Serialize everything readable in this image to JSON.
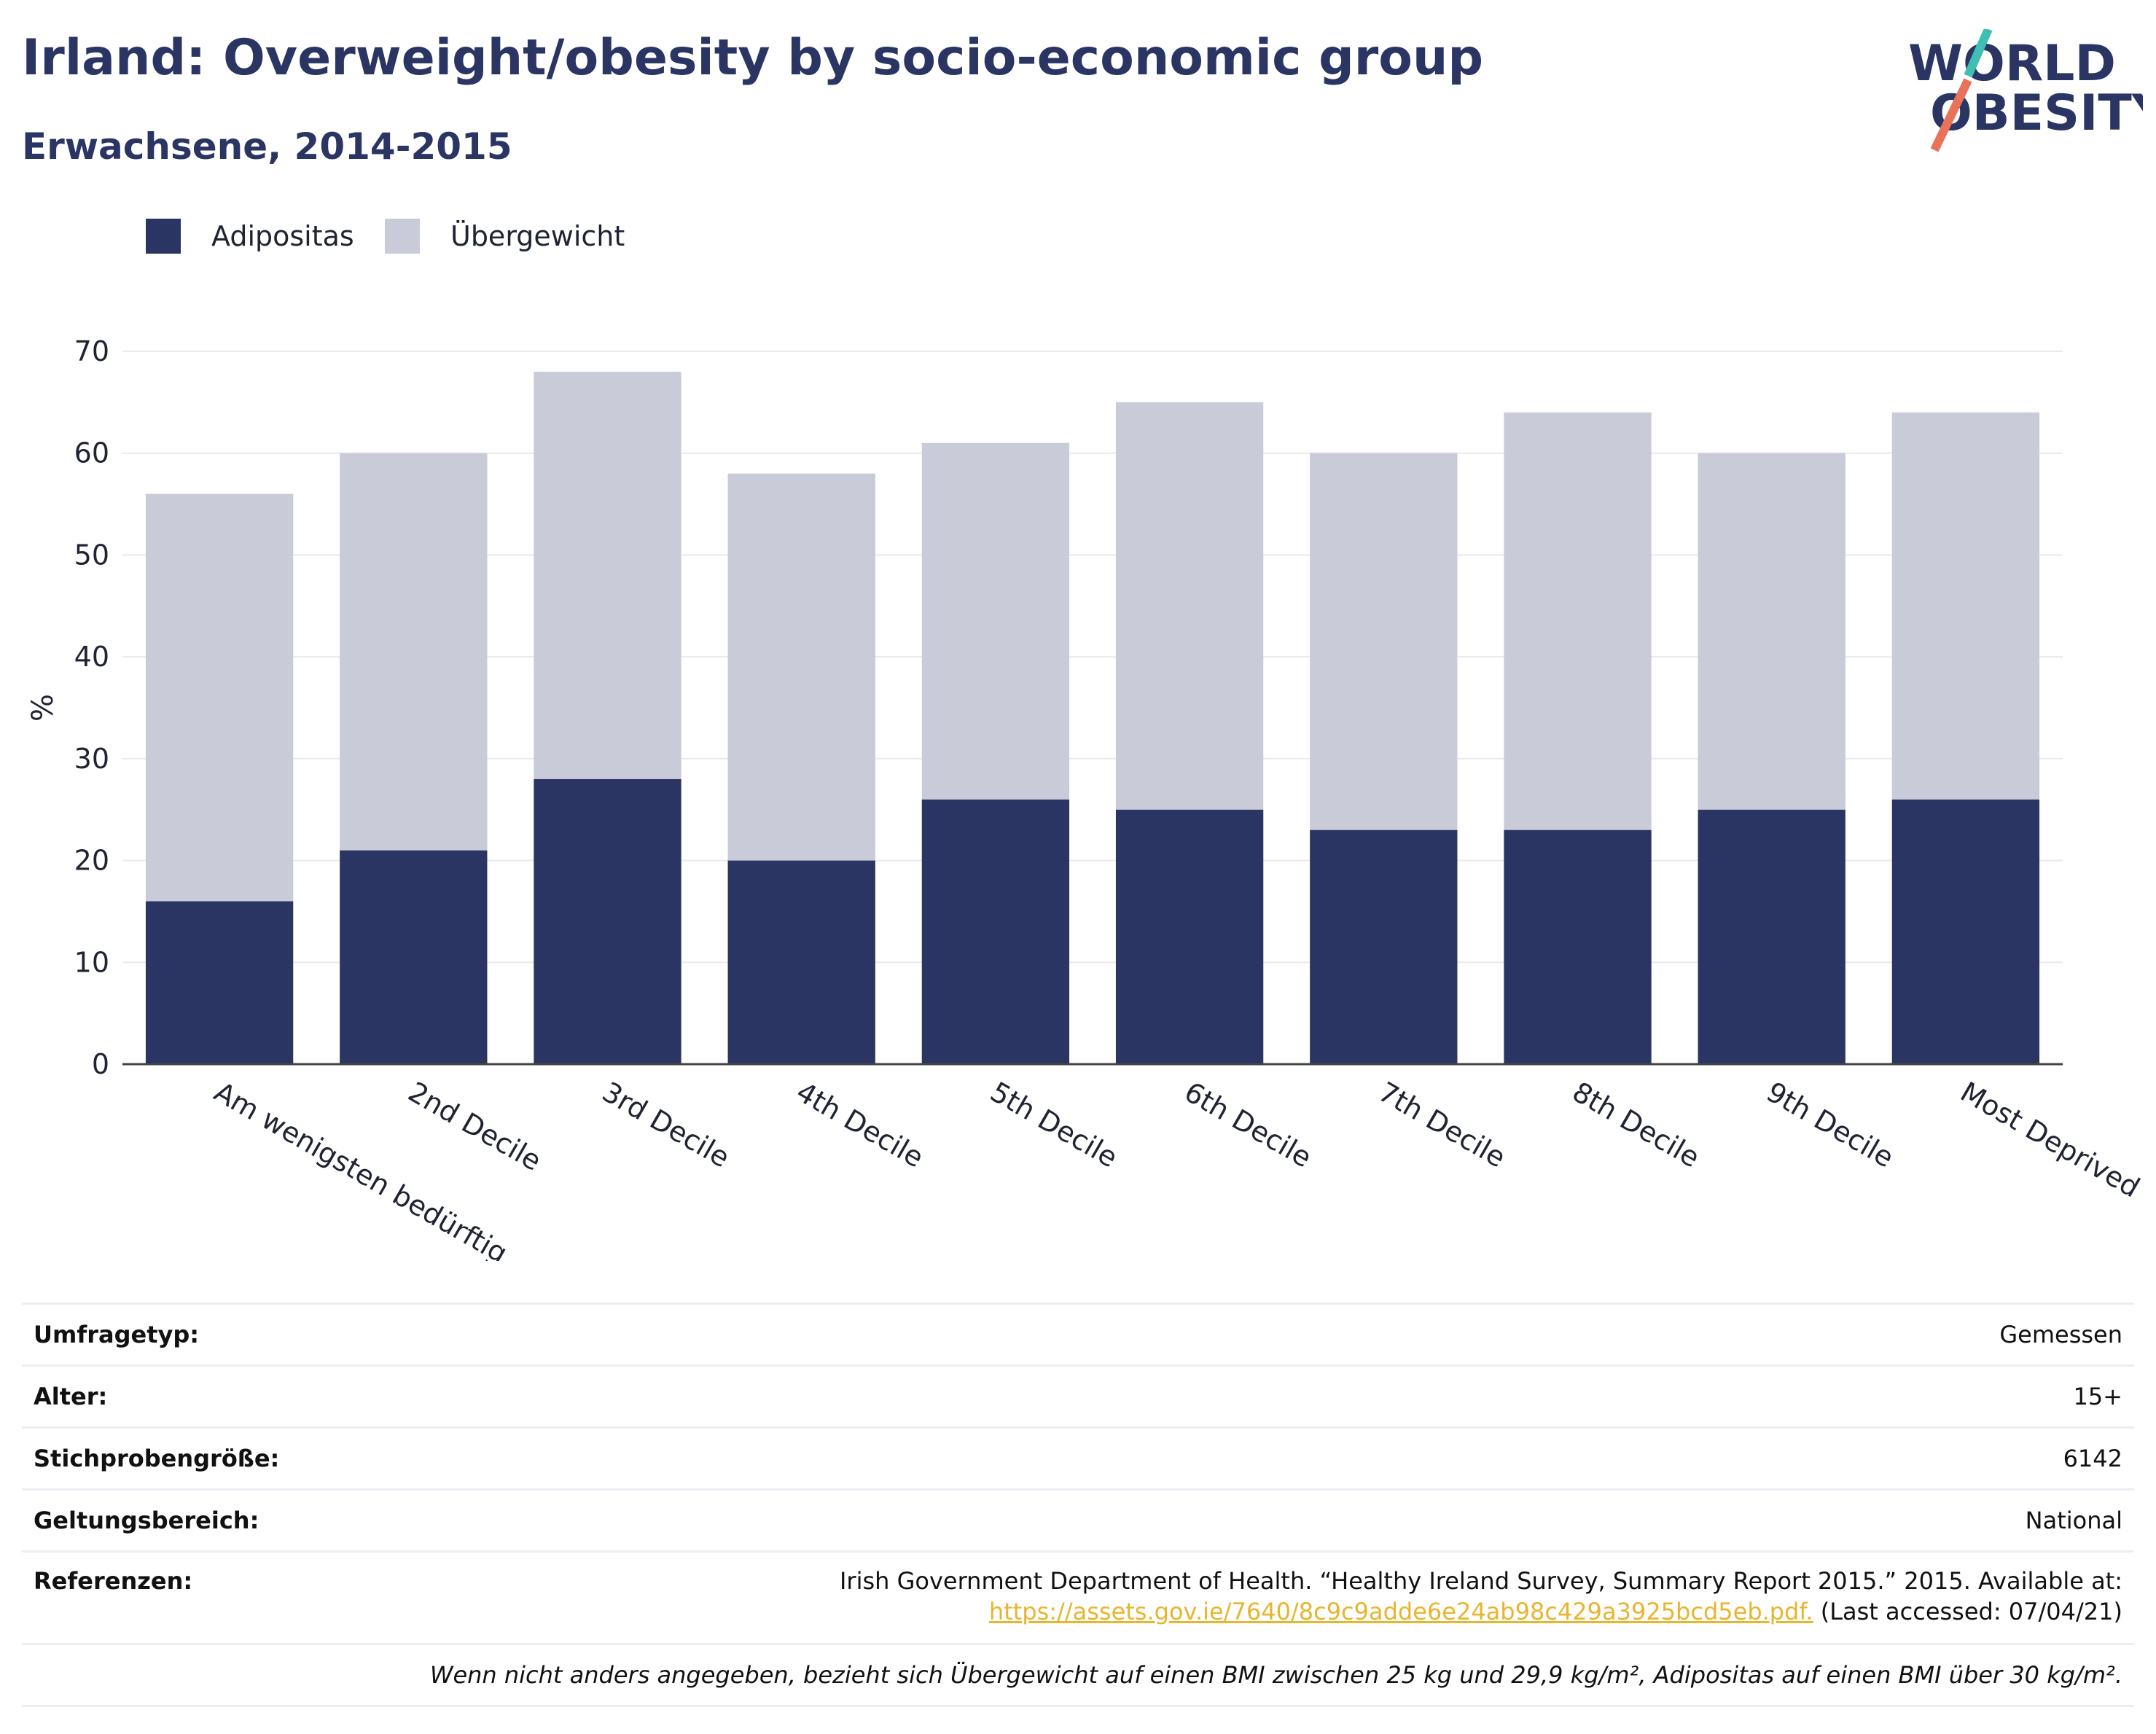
{
  "header": {
    "title": "Irland: Overweight/obesity by socio-economic group",
    "subtitle": "Erwachsene, 2014-2015"
  },
  "logo": {
    "line1": "WORLD",
    "line2": "OBESITY",
    "slash_colors": [
      "#3fbfb3",
      "#e8735a"
    ]
  },
  "legend": [
    {
      "label": "Adipositas",
      "color": "#2a3564"
    },
    {
      "label": "Übergewicht",
      "color": "#c9cbd8"
    }
  ],
  "chart_data": {
    "type": "bar",
    "stacked": true,
    "categories": [
      "Am wenigsten bedürftig",
      "2nd Decile",
      "3rd Decile",
      "4th Decile",
      "5th Decile",
      "6th Decile",
      "7th Decile",
      "8th Decile",
      "9th Decile",
      "Most Deprived"
    ],
    "series": [
      {
        "name": "Adipositas",
        "color": "#2a3564",
        "values": [
          16,
          21,
          28,
          20,
          26,
          25,
          23,
          23,
          25,
          26
        ]
      },
      {
        "name": "Übergewicht",
        "color": "#c9cbd8",
        "values": [
          40,
          39,
          40,
          38,
          35,
          40,
          37,
          41,
          35,
          38
        ]
      }
    ],
    "ylabel": "%",
    "ylim": [
      0,
      70
    ],
    "yticks": [
      0,
      10,
      20,
      30,
      40,
      50,
      60,
      70
    ],
    "grid": true,
    "legend_position": "top-left"
  },
  "info": {
    "survey_type": {
      "label": "Umfragetyp:",
      "value": "Gemessen"
    },
    "age": {
      "label": "Alter:",
      "value": "15+"
    },
    "sample_size": {
      "label": "Stichprobengröße:",
      "value": "6142"
    },
    "scope": {
      "label": "Geltungsbereich:",
      "value": "National"
    },
    "references": {
      "label": "Referenzen:",
      "text": "Irish Government Department of Health. “Healthy Ireland Survey, Summary Report 2015.” 2015. Available at:",
      "link": "https://assets.gov.ie/7640/8c9c9adde6e24ab98c429a3925bcd5eb.pdf.",
      "accessed": " (Last accessed: 07/04/21)"
    },
    "note": "Wenn nicht anders angegeben, bezieht sich Übergewicht auf einen BMI zwischen 25 kg und 29,9 kg/m², Adipositas auf einen BMI über 30 kg/m²."
  }
}
